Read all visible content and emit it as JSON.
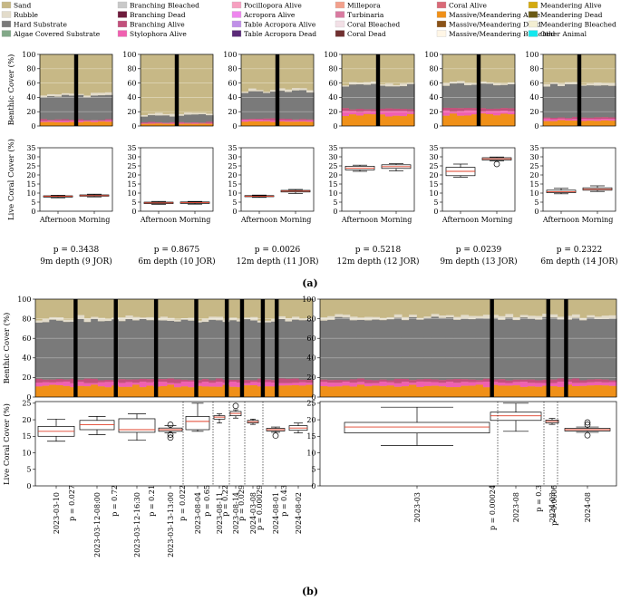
{
  "legend": [
    {
      "label": "Sand",
      "color": "#c7b886"
    },
    {
      "label": "Branching Bleached",
      "color": "#c9c9c9"
    },
    {
      "label": "Pocillopora Alive",
      "color": "#f6a0c0"
    },
    {
      "label": "Millepora",
      "color": "#f2a08c"
    },
    {
      "label": "Coral Alive",
      "color": "#d96a78"
    },
    {
      "label": "Meandering Alive",
      "color": "#d4aa10"
    },
    {
      "label": "Rubble",
      "color": "#e3dccb"
    },
    {
      "label": "Branching Dead",
      "color": "#6e1b3c"
    },
    {
      "label": "Acropora Alive",
      "color": "#ee86ee"
    },
    {
      "label": "Turbinaria",
      "color": "#d97aa0"
    },
    {
      "label": "Massive/Meandering Alive",
      "color": "#f09018"
    },
    {
      "label": "Meandering Dead",
      "color": "#6b5a14"
    },
    {
      "label": "Hard Substrate",
      "color": "#7a7a7a"
    },
    {
      "label": "Branching Alive",
      "color": "#c2507c"
    },
    {
      "label": "Table Acropora Alive",
      "color": "#c090e8"
    },
    {
      "label": "Coral Bleached",
      "color": "#f2e0e6"
    },
    {
      "label": "Massive/Meandering Dead",
      "color": "#8a5218"
    },
    {
      "label": "Meandering Bleached",
      "color": "#f3eed2"
    },
    {
      "label": "Algae Covered Substrate",
      "color": "#82a888"
    },
    {
      "label": "Stylophora Alive",
      "color": "#f060b0"
    },
    {
      "label": "Table Acropora Dead",
      "color": "#5a2a78"
    },
    {
      "label": "Coral Dead",
      "color": "#703030"
    },
    {
      "label": "Massive/Meandering Bleached",
      "color": "#fff6e6"
    },
    {
      "label": "Other Animal",
      "color": "#12e8ee"
    }
  ],
  "panel_labels": {
    "a": "(a)",
    "b": "(b)"
  },
  "axis_labels": {
    "benthic": "Benthic Cover (%)",
    "live": "Live Coral Cover (%)"
  },
  "chart_data": [
    {
      "type": "stacked-area+box",
      "title": "9m depth (9 JOR)",
      "p_value": "p = 0.3438",
      "categories": [
        "Afternoon",
        "Morning"
      ],
      "benthic_ylim": [
        0,
        100
      ],
      "live_ylim": [
        0,
        35
      ],
      "sand_boundary_pct": 42,
      "live_stack_pct": 9,
      "boxes": [
        {
          "label": "Afternoon",
          "whislo": 7.4,
          "q1": 7.8,
          "med": 8.2,
          "q3": 8.5,
          "whishi": 8.8,
          "fliers": []
        },
        {
          "label": "Morning",
          "whislo": 7.9,
          "q1": 8.3,
          "med": 8.6,
          "q3": 9.0,
          "whishi": 9.4,
          "fliers": []
        }
      ]
    },
    {
      "type": "stacked-area+box",
      "title": "6m depth (10 JOR)",
      "p_value": "p = 0.8675",
      "categories": [
        "Afternoon",
        "Morning"
      ],
      "benthic_ylim": [
        0,
        100
      ],
      "live_ylim": [
        0,
        35
      ],
      "sand_boundary_pct": 15,
      "live_stack_pct": 5,
      "boxes": [
        {
          "label": "Afternoon",
          "whislo": 3.8,
          "q1": 4.2,
          "med": 4.6,
          "q3": 5.0,
          "whishi": 5.4,
          "fliers": []
        },
        {
          "label": "Morning",
          "whislo": 3.9,
          "q1": 4.3,
          "med": 4.7,
          "q3": 5.1,
          "whishi": 5.4,
          "fliers": []
        }
      ]
    },
    {
      "type": "stacked-area+box",
      "title": "12m depth (11 JOR)",
      "p_value": "p = 0.0026",
      "categories": [
        "Afternoon",
        "Morning"
      ],
      "benthic_ylim": [
        0,
        100
      ],
      "live_ylim": [
        0,
        35
      ],
      "sand_boundary_pct": 48,
      "live_stack_pct": 10,
      "boxes": [
        {
          "label": "Afternoon",
          "whislo": 7.6,
          "q1": 8.0,
          "med": 8.3,
          "q3": 8.6,
          "whishi": 8.9,
          "fliers": []
        },
        {
          "label": "Morning",
          "whislo": 9.8,
          "q1": 10.6,
          "med": 11.1,
          "q3": 11.5,
          "whishi": 12.0,
          "fliers": []
        }
      ]
    },
    {
      "type": "stacked-area+box",
      "title": "12m depth (12 JOR)",
      "p_value": "p = 0.5218",
      "categories": [
        "Afternoon",
        "Morning"
      ],
      "benthic_ylim": [
        0,
        100
      ],
      "live_ylim": [
        0,
        35
      ],
      "sand_boundary_pct": 57,
      "live_stack_pct": 24,
      "boxes": [
        {
          "label": "Afternoon",
          "whislo": 22.0,
          "q1": 22.8,
          "med": 23.8,
          "q3": 24.8,
          "whishi": 25.4,
          "fliers": []
        },
        {
          "label": "Morning",
          "whislo": 22.2,
          "q1": 23.6,
          "med": 24.6,
          "q3": 25.6,
          "whishi": 26.2,
          "fliers": []
        }
      ]
    },
    {
      "type": "stacked-area+box",
      "title": "9m depth (13 JOR)",
      "p_value": "p = 0.0239",
      "categories": [
        "Afternoon",
        "Morning"
      ],
      "benthic_ylim": [
        0,
        100
      ],
      "live_ylim": [
        0,
        35
      ],
      "sand_boundary_pct": 58,
      "live_stack_pct": 25,
      "boxes": [
        {
          "label": "Afternoon",
          "whislo": 18.8,
          "q1": 19.6,
          "med": 22.0,
          "q3": 24.2,
          "whishi": 26.0,
          "fliers": []
        },
        {
          "label": "Morning",
          "whislo": 27.8,
          "q1": 28.2,
          "med": 28.9,
          "q3": 29.5,
          "whishi": 29.9,
          "fliers": [
            26.0
          ]
        }
      ]
    },
    {
      "type": "stacked-area+box",
      "title": "6m depth (14 JOR)",
      "p_value": "p = 0.2322",
      "categories": [
        "Afternoon",
        "Morning"
      ],
      "benthic_ylim": [
        0,
        100
      ],
      "live_ylim": [
        0,
        35
      ],
      "sand_boundary_pct": 57,
      "live_stack_pct": 12,
      "boxes": [
        {
          "label": "Afternoon",
          "whislo": 9.6,
          "q1": 10.2,
          "med": 10.8,
          "q3": 11.6,
          "whishi": 12.6,
          "fliers": []
        },
        {
          "label": "Morning",
          "whislo": 10.9,
          "q1": 11.6,
          "med": 12.1,
          "q3": 12.9,
          "whishi": 14.0,
          "fliers": []
        }
      ]
    },
    {
      "type": "stacked-area+box",
      "title": "",
      "benthic_ylim": [
        0,
        100
      ],
      "live_ylim": [
        0,
        25
      ],
      "sand_boundary_pct": 78,
      "live_stack_pct": 18,
      "categories": [
        "2023-03-10",
        "2023-03-12-08:00",
        "2023-03-12-16:30",
        "2023-03-13-13:00",
        "2023-08-04",
        "2023-08-11",
        "2023-08-14",
        "2024-03-08",
        "2024-08-01",
        "2024-08-02"
      ],
      "p_values": [
        "p = 0.027",
        "p = 0.72",
        "p = 0.21",
        "p = 0.022",
        "p = 0.65",
        "p = 0.22",
        "p = 0.029",
        "p = 0.00029",
        "p = 0.43"
      ],
      "boxes": [
        {
          "label": "2023-03-10",
          "whislo": 13.5,
          "q1": 15.0,
          "med": 16.5,
          "q3": 18.0,
          "whishi": 20.2,
          "fliers": []
        },
        {
          "label": "2023-03-12-08:00",
          "whislo": 15.5,
          "q1": 17.0,
          "med": 18.5,
          "q3": 19.8,
          "whishi": 21.0,
          "fliers": []
        },
        {
          "label": "2023-03-12-16:30",
          "whislo": 13.8,
          "q1": 16.2,
          "med": 17.0,
          "q3": 20.3,
          "whishi": 21.8,
          "fliers": []
        },
        {
          "label": "2023-03-13-13:00",
          "whislo": 16.0,
          "q1": 16.5,
          "med": 17.0,
          "q3": 17.5,
          "whishi": 18.2,
          "fliers": [
            18.5,
            15.5,
            14.6
          ]
        },
        {
          "label": "2023-08-04",
          "whislo": 16.5,
          "q1": 17.0,
          "med": 19.5,
          "q3": 21.0,
          "whishi": 25.0,
          "fliers": []
        },
        {
          "label": "2023-08-11",
          "whislo": 19.0,
          "q1": 20.2,
          "med": 20.8,
          "q3": 21.2,
          "whishi": 21.8,
          "fliers": []
        },
        {
          "label": "2023-08-14",
          "whislo": 20.5,
          "q1": 21.2,
          "med": 21.9,
          "q3": 22.5,
          "whishi": 23.0,
          "fliers": [
            24.2
          ]
        },
        {
          "label": "2024-03-08",
          "whislo": 18.6,
          "q1": 19.0,
          "med": 19.4,
          "q3": 19.8,
          "whishi": 20.2,
          "fliers": []
        },
        {
          "label": "2024-08-01",
          "whislo": 16.2,
          "q1": 16.6,
          "med": 17.0,
          "q3": 17.4,
          "whishi": 17.8,
          "fliers": [
            15.2
          ]
        },
        {
          "label": "2024-08-02",
          "whislo": 16.0,
          "q1": 16.8,
          "med": 17.5,
          "q3": 18.2,
          "whishi": 19.0,
          "fliers": []
        }
      ]
    },
    {
      "type": "stacked-area+box",
      "title": "",
      "benthic_ylim": [
        0,
        100
      ],
      "live_ylim": [
        0,
        25
      ],
      "sand_boundary_pct": 80,
      "live_stack_pct": 18,
      "categories": [
        "2023-03",
        "2023-08",
        "2024-03",
        "2024-08"
      ],
      "p_values": [
        "p = 0.00024",
        "p = 0.3",
        "p = 0.0006"
      ],
      "boxes": [
        {
          "label": "2023-03",
          "whislo": 12.2,
          "q1": 16.0,
          "med": 17.8,
          "q3": 19.2,
          "whishi": 23.8,
          "fliers": []
        },
        {
          "label": "2023-08",
          "whislo": 16.5,
          "q1": 19.8,
          "med": 21.2,
          "q3": 22.3,
          "whishi": 25.0,
          "fliers": []
        },
        {
          "label": "2024-03",
          "whislo": 18.6,
          "q1": 19.0,
          "med": 19.5,
          "q3": 19.9,
          "whishi": 20.4,
          "fliers": []
        },
        {
          "label": "2024-08",
          "whislo": 16.2,
          "q1": 16.6,
          "med": 17.0,
          "q3": 17.4,
          "whishi": 17.8,
          "fliers": [
            19.2,
            18.5,
            15.3
          ]
        }
      ]
    }
  ]
}
